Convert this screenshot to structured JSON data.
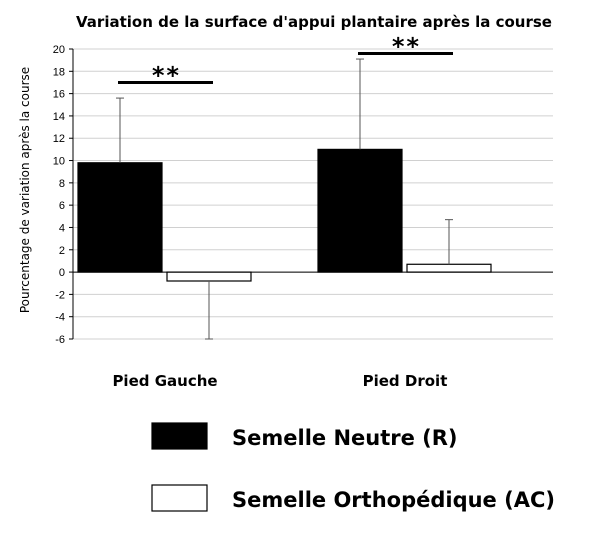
{
  "chart_data": {
    "type": "bar",
    "title": "Variation de la surface d'appui plantaire après la course",
    "ylabel": "Pourcentage de variation après la course",
    "xlabel": "",
    "categories": [
      "Pied Gauche",
      "Pied Droit"
    ],
    "ylim": [
      -6,
      20
    ],
    "yticks": [
      20,
      18,
      16,
      14,
      12,
      10,
      8,
      6,
      4,
      2,
      0,
      -2,
      -4,
      -6
    ],
    "grid": true,
    "series": [
      {
        "name": "Semelle Neutre (R)",
        "values": [
          9.8,
          11.0
        ],
        "error_upper": [
          15.6,
          19.1
        ],
        "color": "#000000"
      },
      {
        "name": "Semelle Orthopédique (AC)",
        "values": [
          -0.8,
          0.7
        ],
        "error_lower": [
          -6.0,
          null
        ],
        "error_upper": [
          null,
          4.7
        ],
        "color": "#ffffff"
      }
    ],
    "significance": [
      {
        "category": "Pied Gauche",
        "label": "**"
      },
      {
        "category": "Pied Droit",
        "label": "**"
      }
    ],
    "legend_position": "bottom"
  }
}
